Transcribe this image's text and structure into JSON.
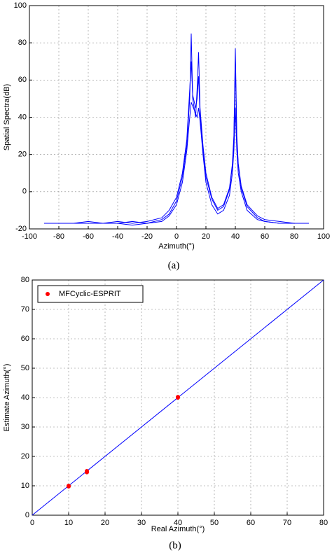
{
  "chart_data": [
    {
      "type": "line",
      "caption": "(a)",
      "xlabel": "Azimuth(°)",
      "ylabel": "Spatial Spectra(dB)",
      "xlim": [
        -100,
        100
      ],
      "ylim": [
        -20,
        100
      ],
      "xticks": [
        -100,
        -80,
        -60,
        -40,
        -20,
        0,
        20,
        40,
        60,
        80,
        100
      ],
      "yticks": [
        -20,
        0,
        20,
        40,
        60,
        80,
        100
      ],
      "grid": true,
      "x": [
        -90,
        -80,
        -70,
        -60,
        -50,
        -40,
        -30,
        -20,
        -10,
        -5,
        0,
        4,
        7,
        9,
        10,
        11,
        13,
        14,
        15,
        16,
        18,
        20,
        24,
        28,
        32,
        36,
        38,
        39,
        40,
        41,
        42,
        44,
        48,
        55,
        60,
        70,
        80,
        90
      ],
      "series": [
        {
          "color": "#0000ff",
          "values": [
            -17,
            -17,
            -17,
            -16,
            -17,
            -17,
            -16,
            -17,
            -15,
            -12,
            -5,
            8,
            25,
            50,
            85,
            50,
            40,
            55,
            75,
            45,
            25,
            10,
            -3,
            -9,
            -7,
            2,
            15,
            30,
            77,
            30,
            15,
            3,
            -7,
            -13,
            -15,
            -16,
            -17,
            -17
          ]
        },
        {
          "color": "#0000ff",
          "values": [
            -17,
            -17,
            -17,
            -17,
            -17,
            -16,
            -17,
            -16,
            -14,
            -10,
            -3,
            10,
            28,
            55,
            70,
            52,
            45,
            50,
            62,
            42,
            22,
            8,
            -4,
            -10,
            -8,
            1,
            14,
            28,
            70,
            28,
            14,
            2,
            -8,
            -14,
            -16,
            -17,
            -17,
            -17
          ]
        },
        {
          "color": "#0000ff",
          "values": [
            -17,
            -17,
            -17,
            -17,
            -17,
            -17,
            -18,
            -17,
            -16,
            -13,
            -7,
            5,
            22,
            40,
            48,
            46,
            42,
            40,
            45,
            38,
            20,
            5,
            -7,
            -12,
            -10,
            -2,
            10,
            22,
            45,
            22,
            10,
            0,
            -10,
            -15,
            -16,
            -17,
            -17,
            -17
          ]
        }
      ]
    },
    {
      "type": "scatter",
      "caption": "(b)",
      "xlabel": "Real Azimuth(°)",
      "ylabel": "Estimate Azimuth(°)",
      "xlim": [
        0,
        80
      ],
      "ylim": [
        0,
        80
      ],
      "xticks": [
        0,
        10,
        20,
        30,
        40,
        50,
        60,
        70,
        80
      ],
      "yticks": [
        0,
        10,
        20,
        30,
        40,
        50,
        60,
        70,
        80
      ],
      "grid": true,
      "legend": "upper left",
      "series": [
        {
          "style": "line",
          "color": "#0000ff",
          "x": [
            0,
            80
          ],
          "values": [
            0,
            80
          ]
        },
        {
          "style": "points",
          "name": "MFCyclic-ESPRIT",
          "color": "#ff0000",
          "x": [
            10,
            10,
            15,
            15,
            40,
            40
          ],
          "values": [
            9.8,
            10,
            14.6,
            15,
            40,
            40.2
          ]
        }
      ]
    }
  ]
}
